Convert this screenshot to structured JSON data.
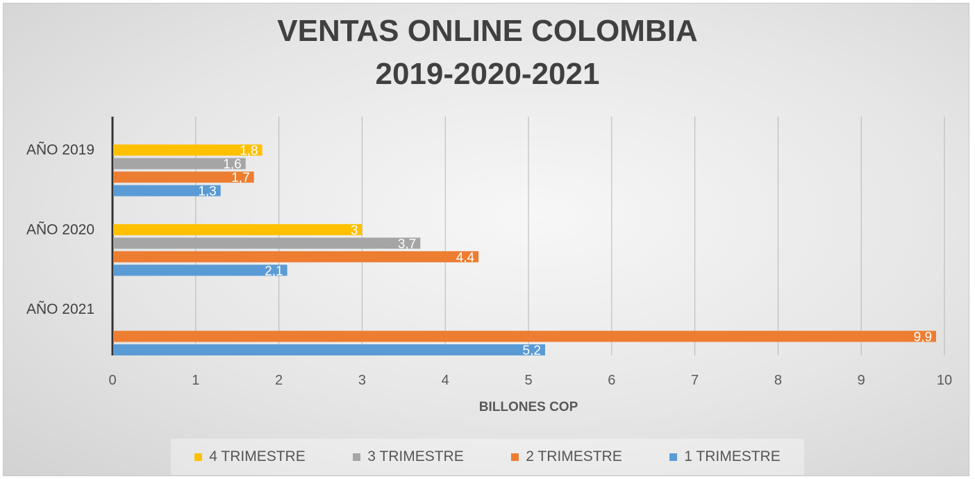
{
  "chart_data": {
    "type": "bar",
    "orientation": "horizontal",
    "title_lines": [
      "VENTAS ONLINE COLOMBIA",
      "2019-2020-2021"
    ],
    "xlabel": "BILLONES COP",
    "ylabel": "",
    "xlim": [
      0,
      10
    ],
    "x_ticks": [
      "0",
      "1",
      "2",
      "3",
      "4",
      "5",
      "6",
      "7",
      "8",
      "9",
      "10"
    ],
    "categories": [
      "AÑO 2019",
      "AÑO 2020",
      "AÑO 2021"
    ],
    "grid": true,
    "legend_position": "bottom",
    "series": [
      {
        "name": "1 TRIMESTRE",
        "color": "#5b9bd5",
        "values": [
          1.3,
          2.1,
          5.2
        ],
        "labels": [
          "1,3",
          "2,1",
          "5,2"
        ]
      },
      {
        "name": "2 TRIMESTRE",
        "color": "#ed7d31",
        "values": [
          1.7,
          4.4,
          9.9
        ],
        "labels": [
          "1,7",
          "4,4",
          "9,9"
        ]
      },
      {
        "name": "3 TRIMESTRE",
        "color": "#a5a5a5",
        "values": [
          1.6,
          3.7,
          null
        ],
        "labels": [
          "1,6",
          "3,7",
          ""
        ]
      },
      {
        "name": "4 TRIMESTRE",
        "color": "#ffc000",
        "values": [
          1.8,
          3,
          null
        ],
        "labels": [
          "1,8",
          "3",
          ""
        ]
      }
    ],
    "legend_order": [
      3,
      2,
      1,
      0
    ]
  }
}
